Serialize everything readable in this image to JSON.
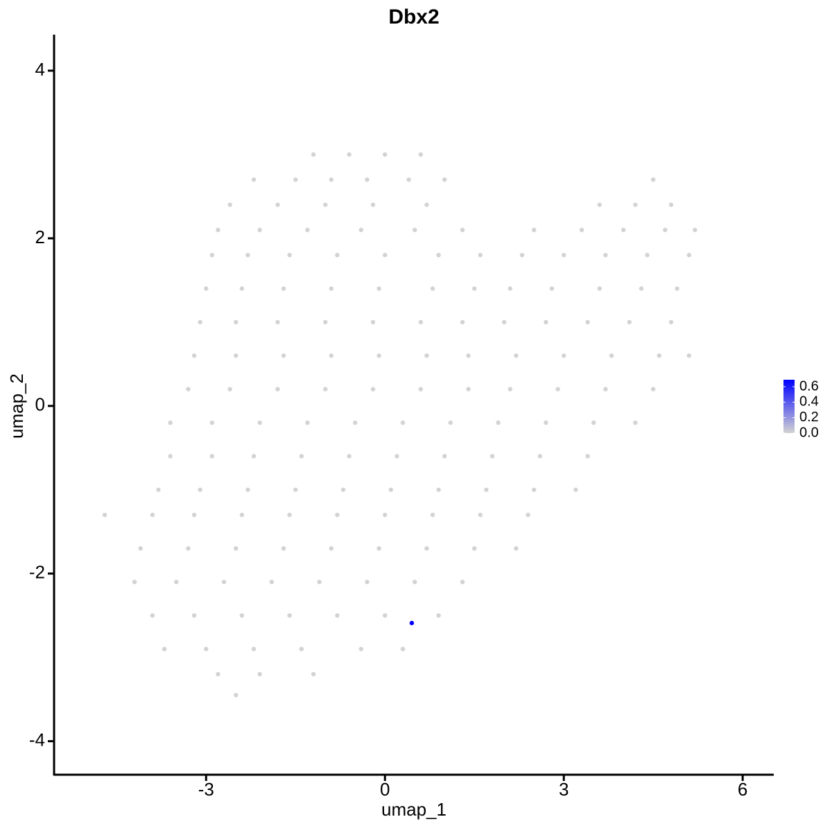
{
  "chart_data": {
    "type": "scatter",
    "title": "Dbx2",
    "xlabel": "umap_1",
    "ylabel": "umap_2",
    "xlim": [
      -5.55,
      6.51
    ],
    "ylim": [
      -4.4,
      4.43
    ],
    "xticks": [
      -3,
      0,
      3,
      6
    ],
    "yticks": [
      -4,
      -2,
      0,
      2,
      4
    ],
    "x": [
      -1.2,
      -0.6,
      0,
      0.6,
      -2.2,
      -1.5,
      -0.9,
      -0.3,
      0.4,
      1.0,
      4.5,
      -2.6,
      -1.8,
      -1.0,
      -0.2,
      0.7,
      3.6,
      4.2,
      4.8,
      -2.8,
      -2.1,
      -1.3,
      -0.4,
      0.5,
      1.3,
      2.5,
      3.3,
      4.0,
      4.7,
      5.2,
      -2.9,
      -2.3,
      -1.6,
      -0.8,
      0,
      0.9,
      1.6,
      2.3,
      3.0,
      3.7,
      4.4,
      5.1,
      -3.0,
      -2.4,
      -1.7,
      -0.9,
      -0.1,
      0.8,
      1.5,
      2.1,
      2.8,
      3.6,
      4.3,
      4.9,
      -3.1,
      -2.5,
      -1.8,
      -1.0,
      -0.2,
      0.6,
      1.3,
      2.0,
      2.7,
      3.4,
      4.1,
      4.8,
      -3.2,
      -2.5,
      -1.7,
      -0.9,
      -0.1,
      0.7,
      1.4,
      2.2,
      3.0,
      3.8,
      4.6,
      5.1,
      -3.3,
      -2.6,
      -1.8,
      -1.0,
      -0.2,
      0.6,
      1.4,
      2.1,
      2.9,
      3.7,
      4.5,
      -3.6,
      -2.9,
      -2.1,
      -1.3,
      -0.5,
      0.3,
      1.1,
      1.9,
      2.7,
      3.5,
      4.2,
      -3.6,
      -2.9,
      -2.2,
      -1.4,
      -0.6,
      0.2,
      1.0,
      1.8,
      2.6,
      3.4,
      -3.8,
      -3.1,
      -2.3,
      -1.5,
      -0.7,
      0.1,
      0.9,
      1.7,
      2.5,
      3.2,
      -4.7,
      -3.9,
      -3.2,
      -2.4,
      -1.6,
      -0.8,
      0,
      0.8,
      1.6,
      2.4,
      -4.1,
      -3.3,
      -2.5,
      -1.7,
      -0.9,
      -0.1,
      0.7,
      1.5,
      2.2,
      -4.2,
      -3.5,
      -2.7,
      -1.9,
      -1.1,
      -0.3,
      0.5,
      1.3,
      -3.9,
      -3.2,
      -2.4,
      -1.6,
      -0.8,
      0,
      0.9,
      -3.7,
      -3.0,
      -2.2,
      -1.4,
      -0.4,
      0.3,
      -2.8,
      -2.1,
      -1.2,
      -2.5,
      0.45
    ],
    "y": [
      3.0,
      3.0,
      3.0,
      3.0,
      2.7,
      2.7,
      2.7,
      2.7,
      2.7,
      2.7,
      2.7,
      2.4,
      2.4,
      2.4,
      2.4,
      2.4,
      2.4,
      2.4,
      2.4,
      2.1,
      2.1,
      2.1,
      2.1,
      2.1,
      2.1,
      2.1,
      2.1,
      2.1,
      2.1,
      2.1,
      1.8,
      1.8,
      1.8,
      1.8,
      1.8,
      1.8,
      1.8,
      1.8,
      1.8,
      1.8,
      1.8,
      1.8,
      1.4,
      1.4,
      1.4,
      1.4,
      1.4,
      1.4,
      1.4,
      1.4,
      1.4,
      1.4,
      1.4,
      1.4,
      1.0,
      1.0,
      1.0,
      1.0,
      1.0,
      1.0,
      1.0,
      1.0,
      1.0,
      1.0,
      1.0,
      1.0,
      0.6,
      0.6,
      0.6,
      0.6,
      0.6,
      0.6,
      0.6,
      0.6,
      0.6,
      0.6,
      0.6,
      0.6,
      0.2,
      0.2,
      0.2,
      0.2,
      0.2,
      0.2,
      0.2,
      0.2,
      0.2,
      0.2,
      0.2,
      -0.2,
      -0.2,
      -0.2,
      -0.2,
      -0.2,
      -0.2,
      -0.2,
      -0.2,
      -0.2,
      -0.2,
      -0.2,
      -0.6,
      -0.6,
      -0.6,
      -0.6,
      -0.6,
      -0.6,
      -0.6,
      -0.6,
      -0.6,
      -0.6,
      -1.0,
      -1.0,
      -1.0,
      -1.0,
      -1.0,
      -1.0,
      -1.0,
      -1.0,
      -1.0,
      -1.0,
      -1.3,
      -1.3,
      -1.3,
      -1.3,
      -1.3,
      -1.3,
      -1.3,
      -1.3,
      -1.3,
      -1.3,
      -1.7,
      -1.7,
      -1.7,
      -1.7,
      -1.7,
      -1.7,
      -1.7,
      -1.7,
      -1.7,
      -2.1,
      -2.1,
      -2.1,
      -2.1,
      -2.1,
      -2.1,
      -2.1,
      -2.1,
      -2.5,
      -2.5,
      -2.5,
      -2.5,
      -2.5,
      -2.5,
      -2.5,
      -2.9,
      -2.9,
      -2.9,
      -2.9,
      -2.9,
      -2.9,
      -3.2,
      -3.2,
      -3.2,
      -3.45,
      -2.59
    ],
    "expression": [
      0,
      0,
      0,
      0,
      0,
      0,
      0,
      0,
      0,
      0,
      0,
      0,
      0,
      0,
      0,
      0,
      0,
      0,
      0,
      0,
      0,
      0,
      0,
      0,
      0,
      0,
      0,
      0,
      0,
      0,
      0,
      0,
      0,
      0,
      0,
      0,
      0,
      0,
      0,
      0,
      0,
      0,
      0,
      0,
      0,
      0,
      0,
      0,
      0,
      0,
      0,
      0,
      0,
      0,
      0,
      0,
      0,
      0,
      0,
      0,
      0,
      0,
      0,
      0,
      0,
      0,
      0,
      0,
      0,
      0,
      0,
      0,
      0,
      0,
      0,
      0,
      0,
      0,
      0,
      0,
      0,
      0,
      0,
      0,
      0,
      0,
      0,
      0,
      0,
      0,
      0,
      0,
      0,
      0,
      0,
      0,
      0,
      0,
      0,
      0,
      0,
      0,
      0,
      0,
      0,
      0,
      0,
      0,
      0,
      0,
      0,
      0,
      0,
      0,
      0,
      0,
      0,
      0,
      0,
      0,
      0,
      0,
      0,
      0,
      0,
      0,
      0,
      0,
      0,
      0,
      0,
      0,
      0,
      0,
      0,
      0,
      0,
      0,
      0,
      0,
      0,
      0,
      0,
      0,
      0,
      0,
      0,
      0,
      0,
      0,
      0,
      0,
      0,
      0,
      0,
      0,
      0,
      0,
      0,
      0,
      0,
      0,
      0,
      0,
      0.69
    ],
    "colorbar": {
      "lim": [
        0,
        0.69
      ],
      "low": "#d3d3d3",
      "high": "#0000ff",
      "ticks": [
        {
          "value": 0,
          "label": "0.0"
        },
        {
          "value": 0.2,
          "label": "0.2"
        },
        {
          "value": 0.4,
          "label": "0.4"
        },
        {
          "value": 0.6,
          "label": "0.6"
        }
      ]
    }
  }
}
